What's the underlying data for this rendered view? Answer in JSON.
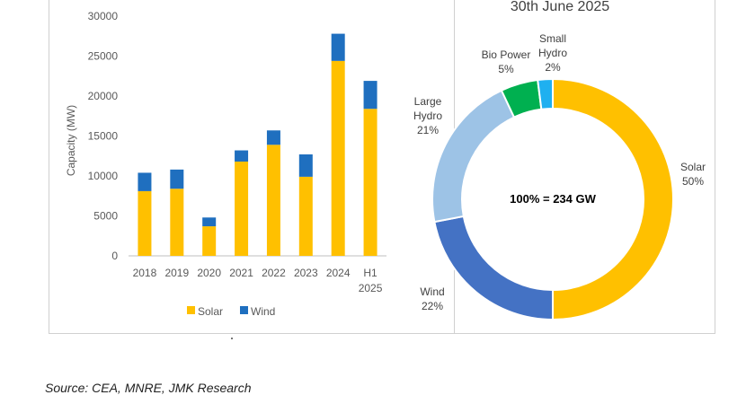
{
  "chart_data": [
    {
      "type": "bar",
      "stacked": true,
      "categories": [
        "2018",
        "2019",
        "2020",
        "2021",
        "2022",
        "2023",
        "2024",
        "H1 2025"
      ],
      "category_lines": [
        [
          "2018"
        ],
        [
          "2019"
        ],
        [
          "2020"
        ],
        [
          "2021"
        ],
        [
          "2022"
        ],
        [
          "2023"
        ],
        [
          "2024"
        ],
        [
          "H1",
          "2025"
        ]
      ],
      "series": [
        {
          "name": "Solar",
          "color": "#FFC000",
          "values": [
            8100,
            8400,
            3700,
            11800,
            13900,
            9900,
            24400,
            18400
          ]
        },
        {
          "name": "Wind",
          "color": "#1F6FBF",
          "values": [
            2300,
            2400,
            1100,
            1400,
            1800,
            2800,
            3400,
            3500
          ]
        }
      ],
      "ylabel": "Capacity (MW)",
      "ylim": [
        0,
        30000
      ],
      "yticks": [
        0,
        5000,
        10000,
        15000,
        20000,
        25000,
        30000
      ],
      "grid": false,
      "legend_position": "bottom"
    },
    {
      "type": "pie",
      "variant": "donut",
      "title": "30th June 2025",
      "center_label": "100% = 234 GW",
      "slices": [
        {
          "label": "Solar",
          "percent_label": "50%",
          "value": 50,
          "color": "#FFC000"
        },
        {
          "label": "Wind",
          "percent_label": "22%",
          "value": 22,
          "color": "#4472C4"
        },
        {
          "label": "Large Hydro",
          "label_lines": [
            "Large",
            "Hydro"
          ],
          "percent_label": "21%",
          "value": 21,
          "color": "#9DC3E6"
        },
        {
          "label": "Bio Power",
          "percent_label": "5%",
          "value": 5,
          "color": "#00B050"
        },
        {
          "label": "Small Hydro",
          "label_lines": [
            "Small",
            "Hydro"
          ],
          "percent_label": "2%",
          "value": 2,
          "color": "#1FB0F0"
        }
      ]
    }
  ],
  "source": "Source: CEA, MNRE, JMK Research"
}
